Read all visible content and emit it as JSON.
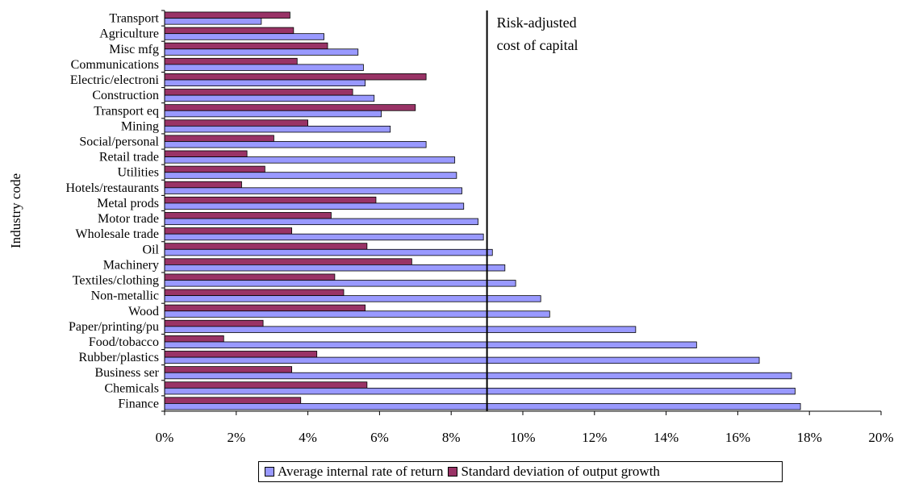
{
  "chart_data": {
    "type": "bar",
    "orientation": "horizontal",
    "ylabel": "Industry code",
    "xlabel": "",
    "xlim": [
      0,
      20
    ],
    "x_ticks": [
      "0%",
      "2%",
      "4%",
      "6%",
      "8%",
      "10%",
      "12%",
      "14%",
      "16%",
      "18%",
      "20%"
    ],
    "grid": false,
    "categories": [
      "Transport",
      "Agriculture",
      "Misc mfg",
      "Communications",
      "Electric/electroni",
      "Construction",
      "Transport eq",
      "Mining",
      "Social/personal",
      "Retail trade",
      "Utilities",
      "Hotels/restaurants",
      "Metal prods",
      "Motor trade",
      "Wholesale trade",
      "Oil",
      "Machinery",
      "Textiles/clothing",
      "Non-metallic",
      "Wood",
      "Paper/printing/pu",
      "Food/tobacco",
      "Rubber/plastics",
      "Business ser",
      "Chemicals",
      "Finance"
    ],
    "series": [
      {
        "name": "Standard deviation of output growth",
        "color": "#993366",
        "values": [
          3.5,
          3.6,
          4.55,
          3.7,
          7.3,
          5.25,
          7.0,
          4.0,
          3.05,
          2.3,
          2.8,
          2.15,
          5.9,
          4.65,
          3.55,
          5.65,
          6.9,
          4.75,
          5.0,
          5.6,
          2.75,
          1.65,
          4.25,
          3.55,
          5.65,
          3.8
        ]
      },
      {
        "name": "Average internal rate of return",
        "color": "#9999ff",
        "values": [
          2.7,
          4.45,
          5.4,
          5.55,
          5.6,
          5.85,
          6.05,
          6.3,
          7.3,
          8.1,
          8.15,
          8.3,
          8.35,
          8.75,
          8.9,
          9.15,
          9.5,
          9.8,
          10.5,
          10.75,
          13.15,
          14.85,
          16.6,
          17.5,
          17.6,
          17.75
        ]
      }
    ],
    "reference_line": {
      "x": 9.0,
      "label_lines": [
        "Risk-adjusted",
        "cost of capital"
      ]
    },
    "legend": {
      "position": "bottom",
      "items": [
        "Average internal rate of return",
        "Standard deviation of output growth"
      ]
    }
  }
}
